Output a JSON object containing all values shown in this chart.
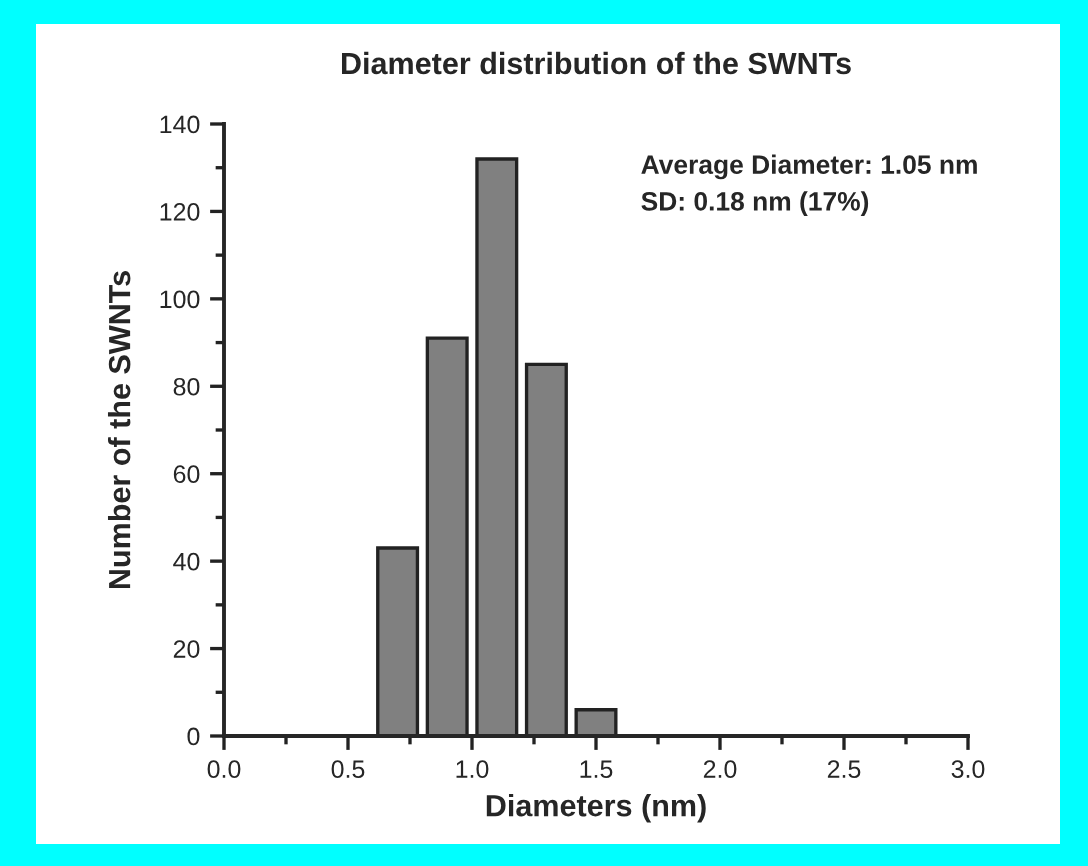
{
  "chart_data": {
    "type": "histogram",
    "title": "Diameter distribution of the SWNTs",
    "xlabel": "Diameters (nm)",
    "ylabel": "Number of the SWNTs",
    "bins": [
      0.6,
      0.8,
      1.0,
      1.2,
      1.4,
      1.6
    ],
    "values": [
      43,
      91,
      132,
      85,
      6
    ],
    "color": "#808080",
    "xlim": [
      0,
      3
    ],
    "xticks": [
      {
        "value": 0,
        "label": "0.0"
      },
      {
        "value": 0.5,
        "label": "0.5"
      },
      {
        "value": 1,
        "label": "1.0"
      },
      {
        "value": 1.5,
        "label": "1.5"
      },
      {
        "value": 2,
        "label": "2.0"
      },
      {
        "value": 2.5,
        "label": "2.5"
      },
      {
        "value": 3,
        "label": "3.0"
      }
    ],
    "ylim": [
      0,
      140
    ],
    "yticks": [
      0,
      20,
      40,
      60,
      80,
      100,
      120,
      140
    ],
    "annotations": [
      "Average Diameter: 1.05 nm",
      "SD: 0.18 nm (17%)"
    ],
    "grid": false,
    "legend": false
  }
}
